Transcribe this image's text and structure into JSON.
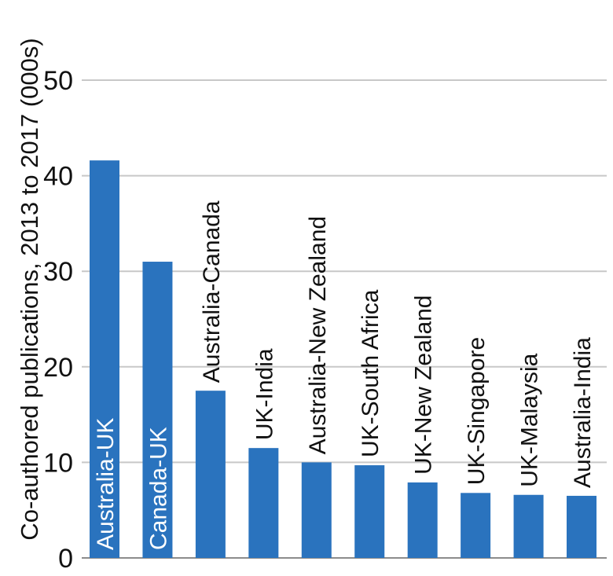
{
  "chart_data": {
    "type": "bar",
    "title": "",
    "xlabel": "",
    "ylabel": "Co-authored publications, 2013 to 2017 (000s)",
    "categories": [
      "Australia-UK",
      "Canada-UK",
      "Australia-Canada",
      "UK-India",
      "Australia-New Zealand",
      "UK-South Africa",
      "UK-New Zealand",
      "UK-Singapore",
      "UK-Malaysia",
      "Australia-India"
    ],
    "values": [
      41.6,
      31.0,
      17.5,
      11.5,
      10.0,
      9.7,
      7.9,
      6.8,
      6.6,
      6.5
    ],
    "ylim": [
      0,
      50
    ],
    "yticks": [
      0,
      10,
      20,
      30,
      40,
      50
    ],
    "grid": true,
    "bar_color": "#2a73be",
    "grid_color": "#c8c8c8",
    "inside_label_color": "#ffffff",
    "outside_label_color": "#111111"
  }
}
